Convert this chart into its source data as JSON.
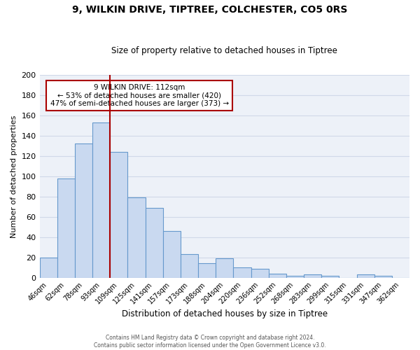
{
  "title": "9, WILKIN DRIVE, TIPTREE, COLCHESTER, CO5 0RS",
  "subtitle": "Size of property relative to detached houses in Tiptree",
  "xlabel": "Distribution of detached houses by size in Tiptree",
  "ylabel": "Number of detached properties",
  "bar_labels": [
    "46sqm",
    "62sqm",
    "78sqm",
    "93sqm",
    "109sqm",
    "125sqm",
    "141sqm",
    "157sqm",
    "173sqm",
    "188sqm",
    "204sqm",
    "220sqm",
    "236sqm",
    "252sqm",
    "268sqm",
    "283sqm",
    "299sqm",
    "315sqm",
    "331sqm",
    "347sqm",
    "362sqm"
  ],
  "bar_values": [
    20,
    98,
    132,
    153,
    124,
    79,
    69,
    46,
    23,
    14,
    19,
    10,
    9,
    4,
    2,
    3,
    2,
    0,
    3,
    2,
    0
  ],
  "bar_color": "#c9d9f0",
  "bar_edge_color": "#6699cc",
  "vline_x": 3.5,
  "vline_color": "#aa0000",
  "annotation_text": "9 WILKIN DRIVE: 112sqm\n← 53% of detached houses are smaller (420)\n47% of semi-detached houses are larger (373) →",
  "annotation_box_edge": "#aa0000",
  "ylim": [
    0,
    200
  ],
  "yticks": [
    0,
    20,
    40,
    60,
    80,
    100,
    120,
    140,
    160,
    180,
    200
  ],
  "grid_color": "#d0d8e8",
  "background_color": "#edf1f8",
  "footer_line1": "Contains HM Land Registry data © Crown copyright and database right 2024.",
  "footer_line2": "Contains public sector information licensed under the Open Government Licence v3.0."
}
